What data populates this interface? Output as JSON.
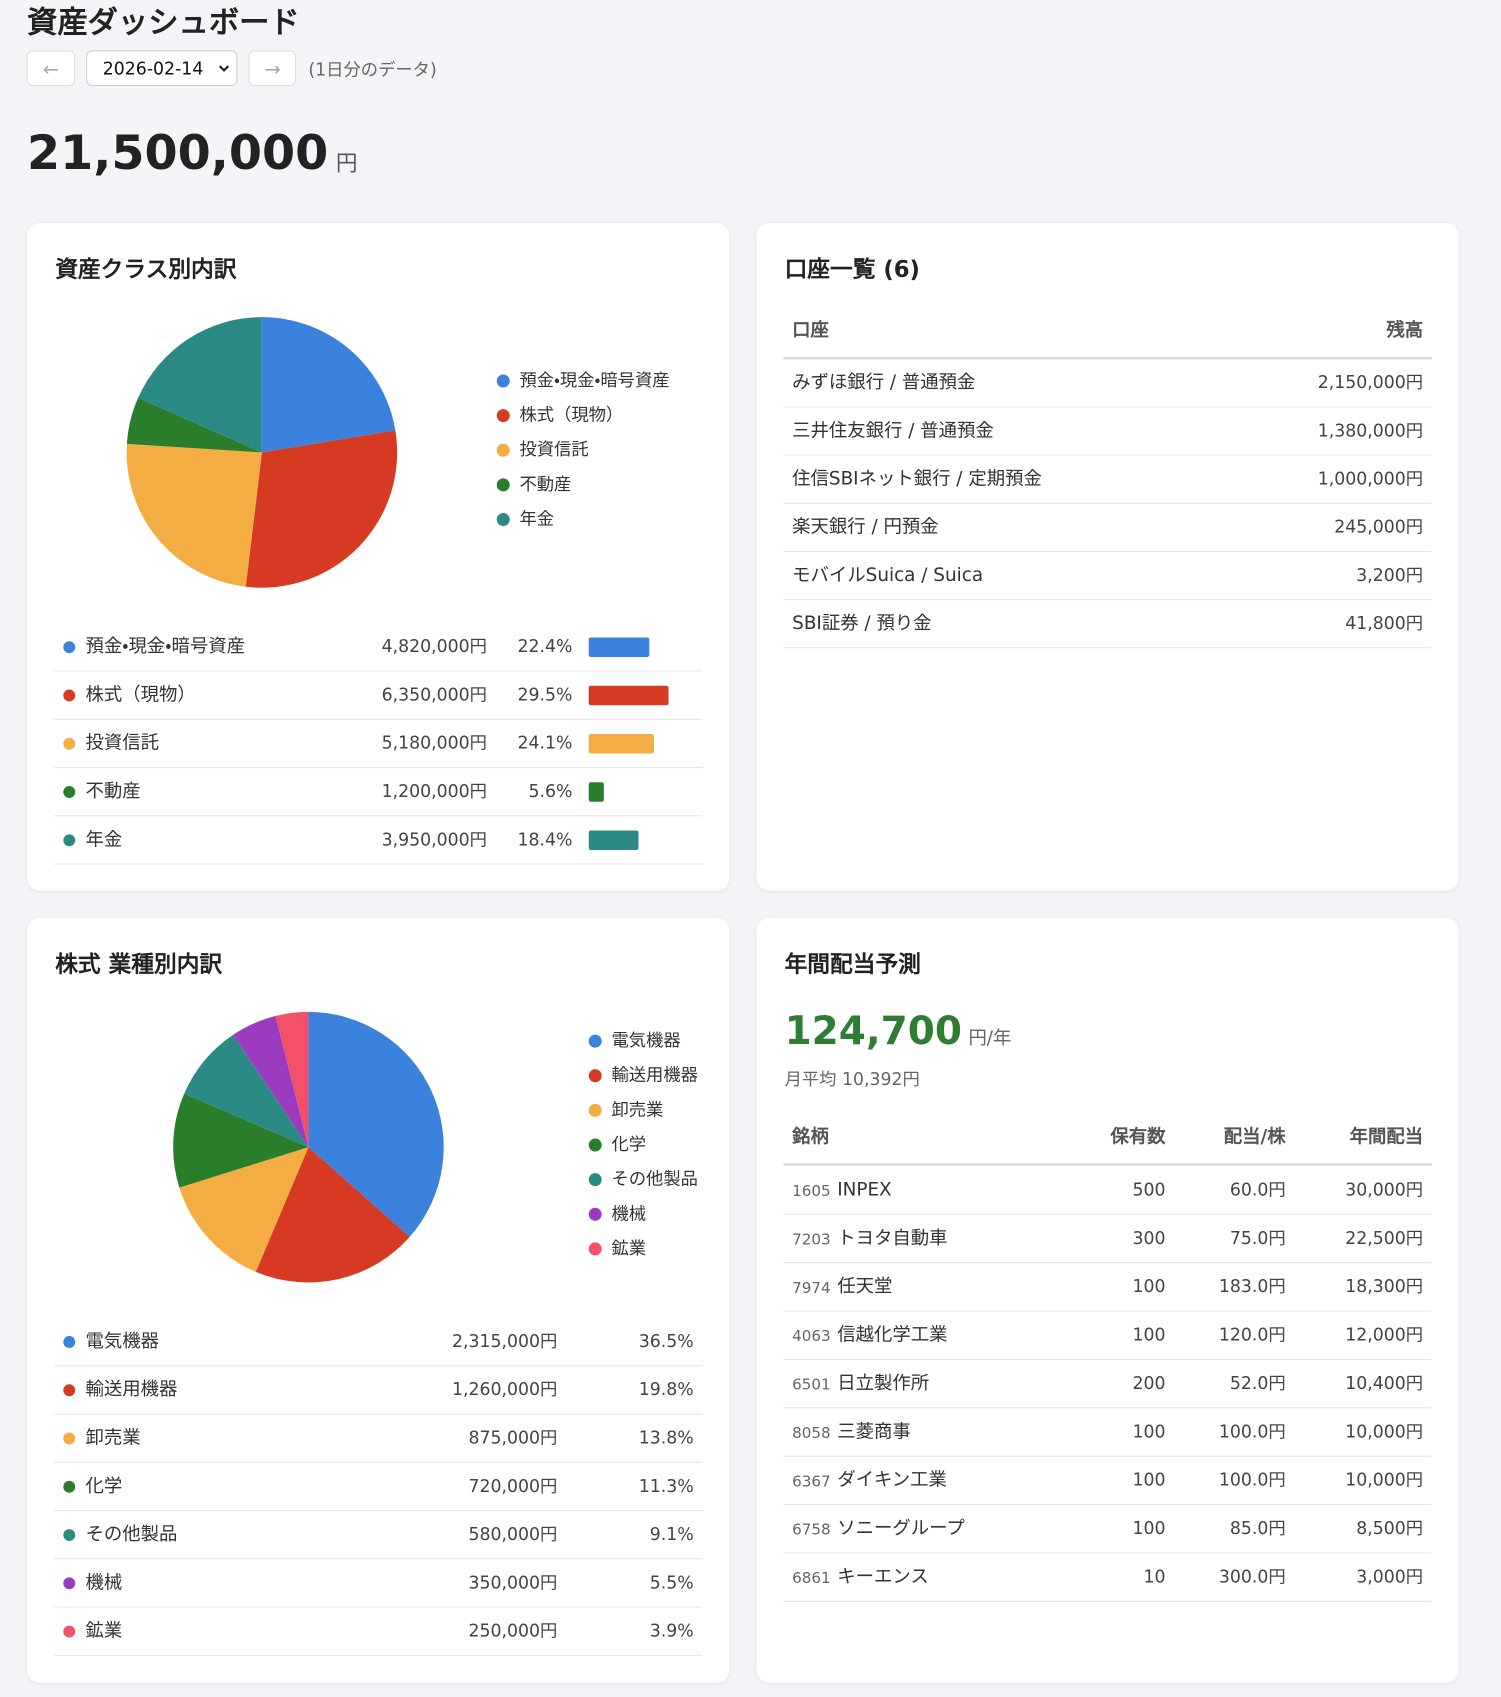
{
  "header": {
    "title": "資産ダッシュボード",
    "prev": "←",
    "date": "2026-02-14",
    "next": "→",
    "note": "(1日分のデータ)",
    "total": "21,500,000",
    "unit": "円"
  },
  "chart_data": [
    {
      "type": "pie",
      "title": "資産クラス別内訳",
      "categories": [
        "預金・現金・暗号資産",
        "株式（現物）",
        "投資信託",
        "不動産",
        "年金"
      ],
      "colors": [
        "#3b82dc",
        "#d63a22",
        "#f4ad42",
        "#2a7d2a",
        "#2c8a84"
      ],
      "values": [
        22.4,
        29.5,
        24.1,
        5.6,
        18.4
      ],
      "value_labels": [
        "22.4%",
        "29.5%",
        "24.1%",
        "5.6%",
        "18.4%"
      ],
      "amounts": [
        "4,820,000円",
        "6,350,000円",
        "5,180,000円",
        "1,200,000円",
        "3,950,000円"
      ],
      "bars": true
    },
    {
      "type": "pie",
      "title": "株式 業種別内訳",
      "categories": [
        "電気機器",
        "輸送用機器",
        "卸売業",
        "化学",
        "その他製品",
        "機械",
        "鉱業"
      ],
      "colors": [
        "#3b82dc",
        "#d63a22",
        "#f4ad42",
        "#2a7d2a",
        "#2c8a84",
        "#9b3bbf",
        "#f2506b"
      ],
      "values": [
        36.5,
        19.8,
        13.8,
        11.3,
        9.1,
        5.5,
        3.9
      ],
      "value_labels": [
        "36.5%",
        "19.8%",
        "13.8%",
        "11.3%",
        "9.1%",
        "5.5%",
        "3.9%"
      ],
      "amounts": [
        "2,315,000円",
        "1,260,000円",
        "875,000円",
        "720,000円",
        "580,000円",
        "350,000円",
        "250,000円"
      ],
      "bars": false
    }
  ],
  "accounts": {
    "title": "口座一覧 (6)",
    "columns": [
      "口座",
      "残高"
    ],
    "rows": [
      [
        "みずほ銀行 / 普通預金",
        "2,150,000円"
      ],
      [
        "三井住友銀行 / 普通預金",
        "1,380,000円"
      ],
      [
        "住信SBIネット銀行 / 定期預金",
        "1,000,000円"
      ],
      [
        "楽天銀行 / 円預金",
        "245,000円"
      ],
      [
        "モバイルSuica / Suica",
        "3,200円"
      ],
      [
        "SBI証券 / 預り金",
        "41,800円"
      ]
    ]
  },
  "dividends": {
    "title": "年間配当予測",
    "amount": "124,700",
    "unit": "円/年",
    "monthly": "月平均 10,392円",
    "columns": [
      "銘柄",
      "保有数",
      "配当/株",
      "年間配当"
    ],
    "rows": [
      [
        "1605",
        "INPEX",
        "500",
        "60.0円",
        "30,000円"
      ],
      [
        "7203",
        "トヨタ自動車",
        "300",
        "75.0円",
        "22,500円"
      ],
      [
        "7974",
        "任天堂",
        "100",
        "183.0円",
        "18,300円"
      ],
      [
        "4063",
        "信越化学工業",
        "100",
        "120.0円",
        "12,000円"
      ],
      [
        "6501",
        "日立製作所",
        "200",
        "52.0円",
        "10,400円"
      ],
      [
        "8058",
        "三菱商事",
        "100",
        "100.0円",
        "10,000円"
      ],
      [
        "6367",
        "ダイキン工業",
        "100",
        "100.0円",
        "10,000円"
      ],
      [
        "6758",
        "ソニーグループ",
        "100",
        "85.0円",
        "8,500円"
      ],
      [
        "6861",
        "キーエンス",
        "10",
        "300.0円",
        "3,000円"
      ]
    ]
  }
}
